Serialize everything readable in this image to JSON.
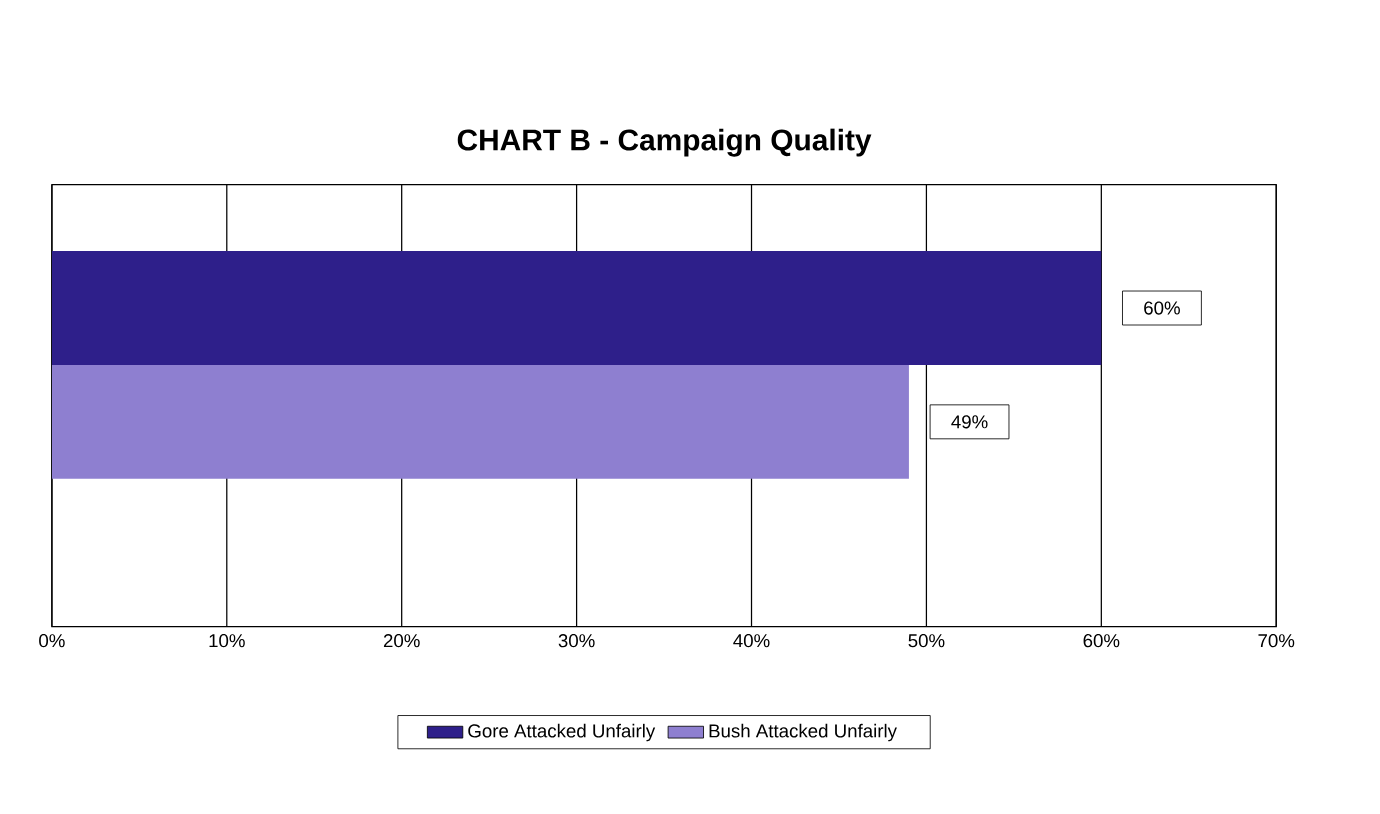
{
  "chart_data": {
    "type": "bar",
    "orientation": "horizontal",
    "title": "CHART B - Campaign Quality",
    "categories": [
      null
    ],
    "series": [
      {
        "name": "Gore Attacked Unfairly",
        "color": "#2e1f8a",
        "values": [
          60
        ],
        "value_labels": [
          "60%"
        ]
      },
      {
        "name": "Bush Attacked Unfairly",
        "color": "#8e7fd0",
        "values": [
          49
        ],
        "value_labels": [
          "49%"
        ]
      }
    ],
    "xlim": [
      0,
      70
    ],
    "xticks": [
      {
        "value": 0,
        "label": "0%"
      },
      {
        "value": 10,
        "label": "10%"
      },
      {
        "value": 20,
        "label": "20%"
      },
      {
        "value": 30,
        "label": "30%"
      },
      {
        "value": 40,
        "label": "40%"
      },
      {
        "value": 50,
        "label": "50%"
      },
      {
        "value": 60,
        "label": "60%"
      },
      {
        "value": 70,
        "label": "70%"
      }
    ],
    "grid": "x",
    "legend": "bottom"
  }
}
